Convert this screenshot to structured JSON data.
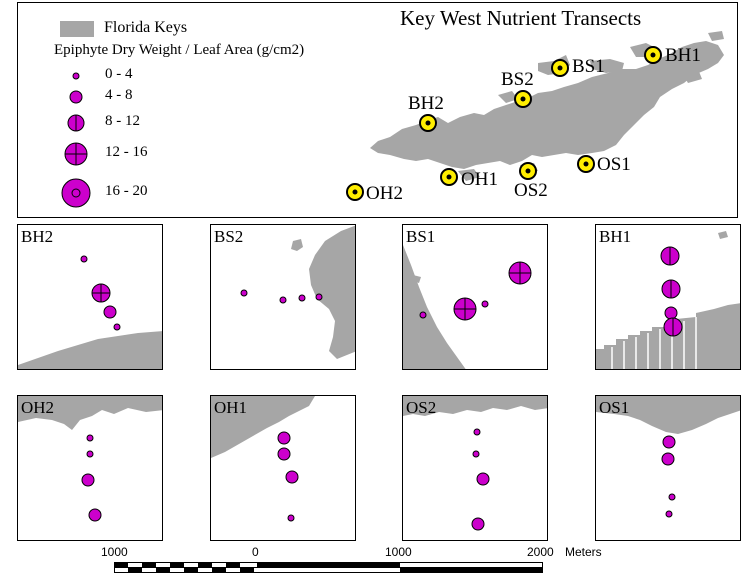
{
  "main_map": {
    "title": "Key West Nutrient Transects",
    "legend": {
      "keys_label": "Florida Keys",
      "size_title": "Epiphyte Dry Weight / Leaf Area (g/cm2)",
      "classes": [
        "0 - 4",
        "4 - 8",
        "8 - 12",
        "12 - 16",
        "16 - 20"
      ]
    },
    "sites": [
      {
        "label": "BH1"
      },
      {
        "label": "BS1"
      },
      {
        "label": "BS2"
      },
      {
        "label": "BH2"
      },
      {
        "label": "OS1"
      },
      {
        "label": "OS2"
      },
      {
        "label": "OH1"
      },
      {
        "label": "OH2"
      }
    ],
    "colors": {
      "land": "#a6a6a6",
      "symbol": "#cc00cc",
      "site_fill": "#ffee00"
    }
  },
  "panels": [
    {
      "label": "BH2"
    },
    {
      "label": "BS2"
    },
    {
      "label": "BS1"
    },
    {
      "label": "BH1"
    },
    {
      "label": "OH2"
    },
    {
      "label": "OH1"
    },
    {
      "label": "OS2"
    },
    {
      "label": "OS1"
    }
  ],
  "scale_bar": {
    "ticks": [
      "1000",
      "0",
      "1000",
      "2000"
    ],
    "unit": "Meters"
  }
}
